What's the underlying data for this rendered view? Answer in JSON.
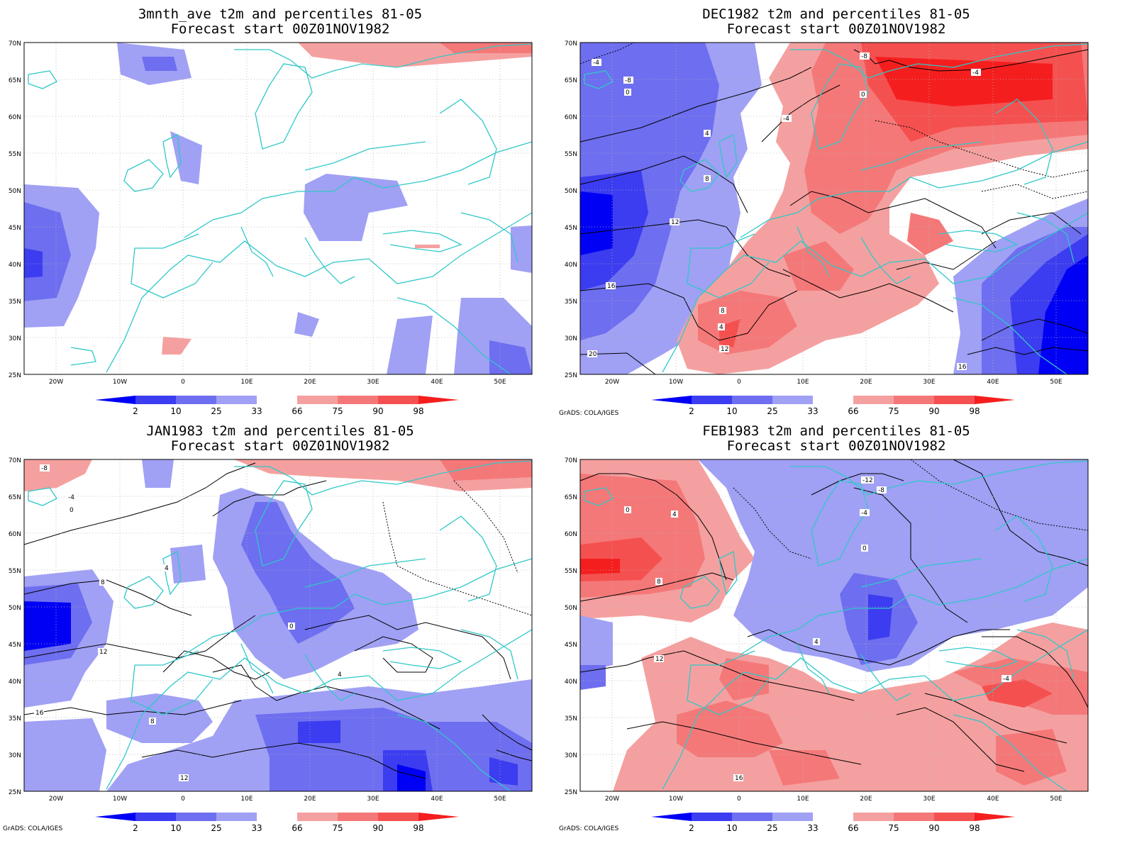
{
  "panels": [
    {
      "title1": "3mnth_ave t2m and percentiles 81-05",
      "title2": "Forecast start 00Z01NOV1982"
    },
    {
      "title1": "DEC1982 t2m and percentiles 81-05",
      "title2": "Forecast start 00Z01NOV1982"
    },
    {
      "title1": "JAN1983 t2m and percentiles 81-05",
      "title2": "Forecast start 00Z01NOV1982"
    },
    {
      "title1": "FEB1983 t2m and percentiles 81-05",
      "title2": "Forecast start 00Z01NOV1982"
    }
  ],
  "lat_labels": [
    "70N",
    "65N",
    "60N",
    "55N",
    "50N",
    "45N",
    "40N",
    "35N",
    "30N",
    "25N"
  ],
  "lon_labels": [
    "20W",
    "10W",
    "0",
    "10E",
    "20E",
    "30E",
    "40E",
    "50E"
  ],
  "colorbar": {
    "labels": [
      "2",
      "10",
      "25",
      "33",
      "66",
      "75",
      "90",
      "98"
    ],
    "colors": [
      "#0000f5",
      "#3c3cf0",
      "#6e6ef0",
      "#a0a0f5",
      "#ffffff",
      "#f5a0a0",
      "#f57878",
      "#f55050",
      "#f51e1e"
    ]
  },
  "credit": "GrADS: COLA/IGES",
  "contour_labels": {
    "dec": [
      "-8",
      "-4",
      "0",
      "4",
      "8",
      "12",
      "16",
      "20",
      "-4",
      "0",
      "4",
      "8",
      "12",
      "16",
      "-8",
      "-4"
    ],
    "jan": [
      "-8",
      "-4",
      "0",
      "4",
      "8",
      "12",
      "16",
      "0",
      "4",
      "8",
      "12"
    ],
    "feb": [
      "-12",
      "-8",
      "-4",
      "0",
      "4",
      "8",
      "12",
      "16",
      "-4",
      "0",
      "4"
    ]
  }
}
